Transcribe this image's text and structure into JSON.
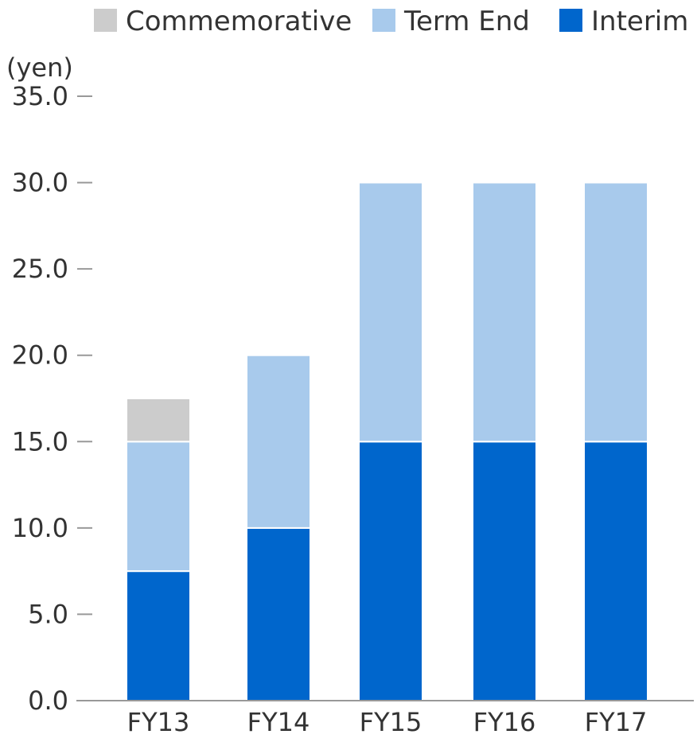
{
  "chart_data": {
    "type": "bar",
    "stacked": true,
    "unit_label": "(yen)",
    "categories": [
      "FY13",
      "FY14",
      "FY15",
      "FY16",
      "FY17"
    ],
    "series": [
      {
        "name": "Interim",
        "values": [
          7.5,
          10.0,
          15.0,
          15.0,
          15.0
        ],
        "color": "#0066cc"
      },
      {
        "name": "Term End",
        "values": [
          7.5,
          10.0,
          15.0,
          15.0,
          15.0
        ],
        "color": "#a8caec"
      },
      {
        "name": "Commemorative",
        "values": [
          2.5,
          0,
          0,
          0,
          0
        ],
        "color": "#cccccc"
      }
    ],
    "legend_order": [
      "Commemorative",
      "Term End",
      "Interim"
    ],
    "legend_position": "top",
    "y_ticks": [
      "0.0",
      "5.0",
      "10.0",
      "15.0",
      "20.0",
      "25.0",
      "30.0",
      "35.0"
    ],
    "ylim": [
      0,
      35
    ],
    "grid": false
  }
}
